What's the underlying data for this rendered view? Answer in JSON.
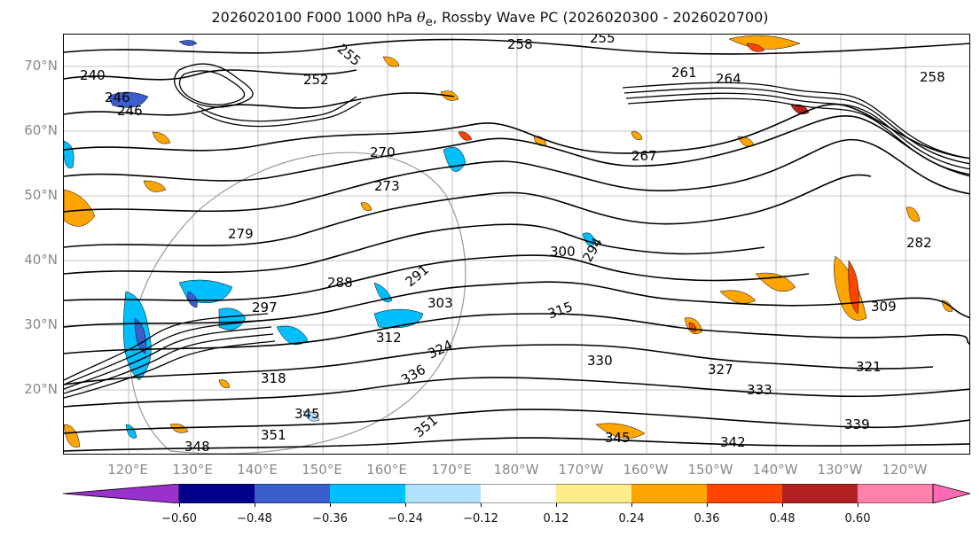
{
  "title": {
    "prefix": "2026020100 F000 1000 hPa ",
    "symbol": "θ",
    "subscript": "e",
    "suffix": ", Rossby Wave PC (2026020300 - 2026020700)"
  },
  "lat_labels": [
    "70°N",
    "60°N",
    "50°N",
    "40°N",
    "30°N",
    "20°N"
  ],
  "lon_labels": [
    "120°E",
    "130°E",
    "140°E",
    "150°E",
    "160°E",
    "170°E",
    "180°W",
    "170°W",
    "160°W",
    "150°W",
    "140°W",
    "130°W",
    "120°W"
  ],
  "contour_labels": [
    "240",
    "246",
    "246",
    "252",
    "255",
    "258",
    "255",
    "261",
    "264",
    "258",
    "267",
    "270",
    "273",
    "279",
    "282",
    "288",
    "291",
    "294",
    "297",
    "300",
    "303",
    "309",
    "312",
    "315",
    "318",
    "321",
    "324",
    "327",
    "330",
    "333",
    "336",
    "339",
    "342",
    "345",
    "345",
    "348",
    "351",
    "351"
  ],
  "colorbar": {
    "ticks": [
      "−0.60",
      "−0.48",
      "−0.36",
      "−0.24",
      "−0.12",
      "0.12",
      "0.24",
      "0.36",
      "0.48",
      "0.60"
    ],
    "colors": [
      "#9932cc",
      "#00008b",
      "#3a5fcd",
      "#00bfff",
      "#b0e2ff",
      "#ffffff",
      "#ffec8b",
      "#ffa500",
      "#ff4500",
      "#b22222",
      "#ff82ab",
      "#ff69b4"
    ]
  },
  "map_data": {
    "projection": "Plate Carrée, Pacific-centred",
    "lat_range": [
      10,
      75
    ],
    "lon_range": [
      110,
      250
    ],
    "grid": true,
    "fill_field": "Rossby Wave PC",
    "contour_field": "1000 hPa theta-e"
  }
}
